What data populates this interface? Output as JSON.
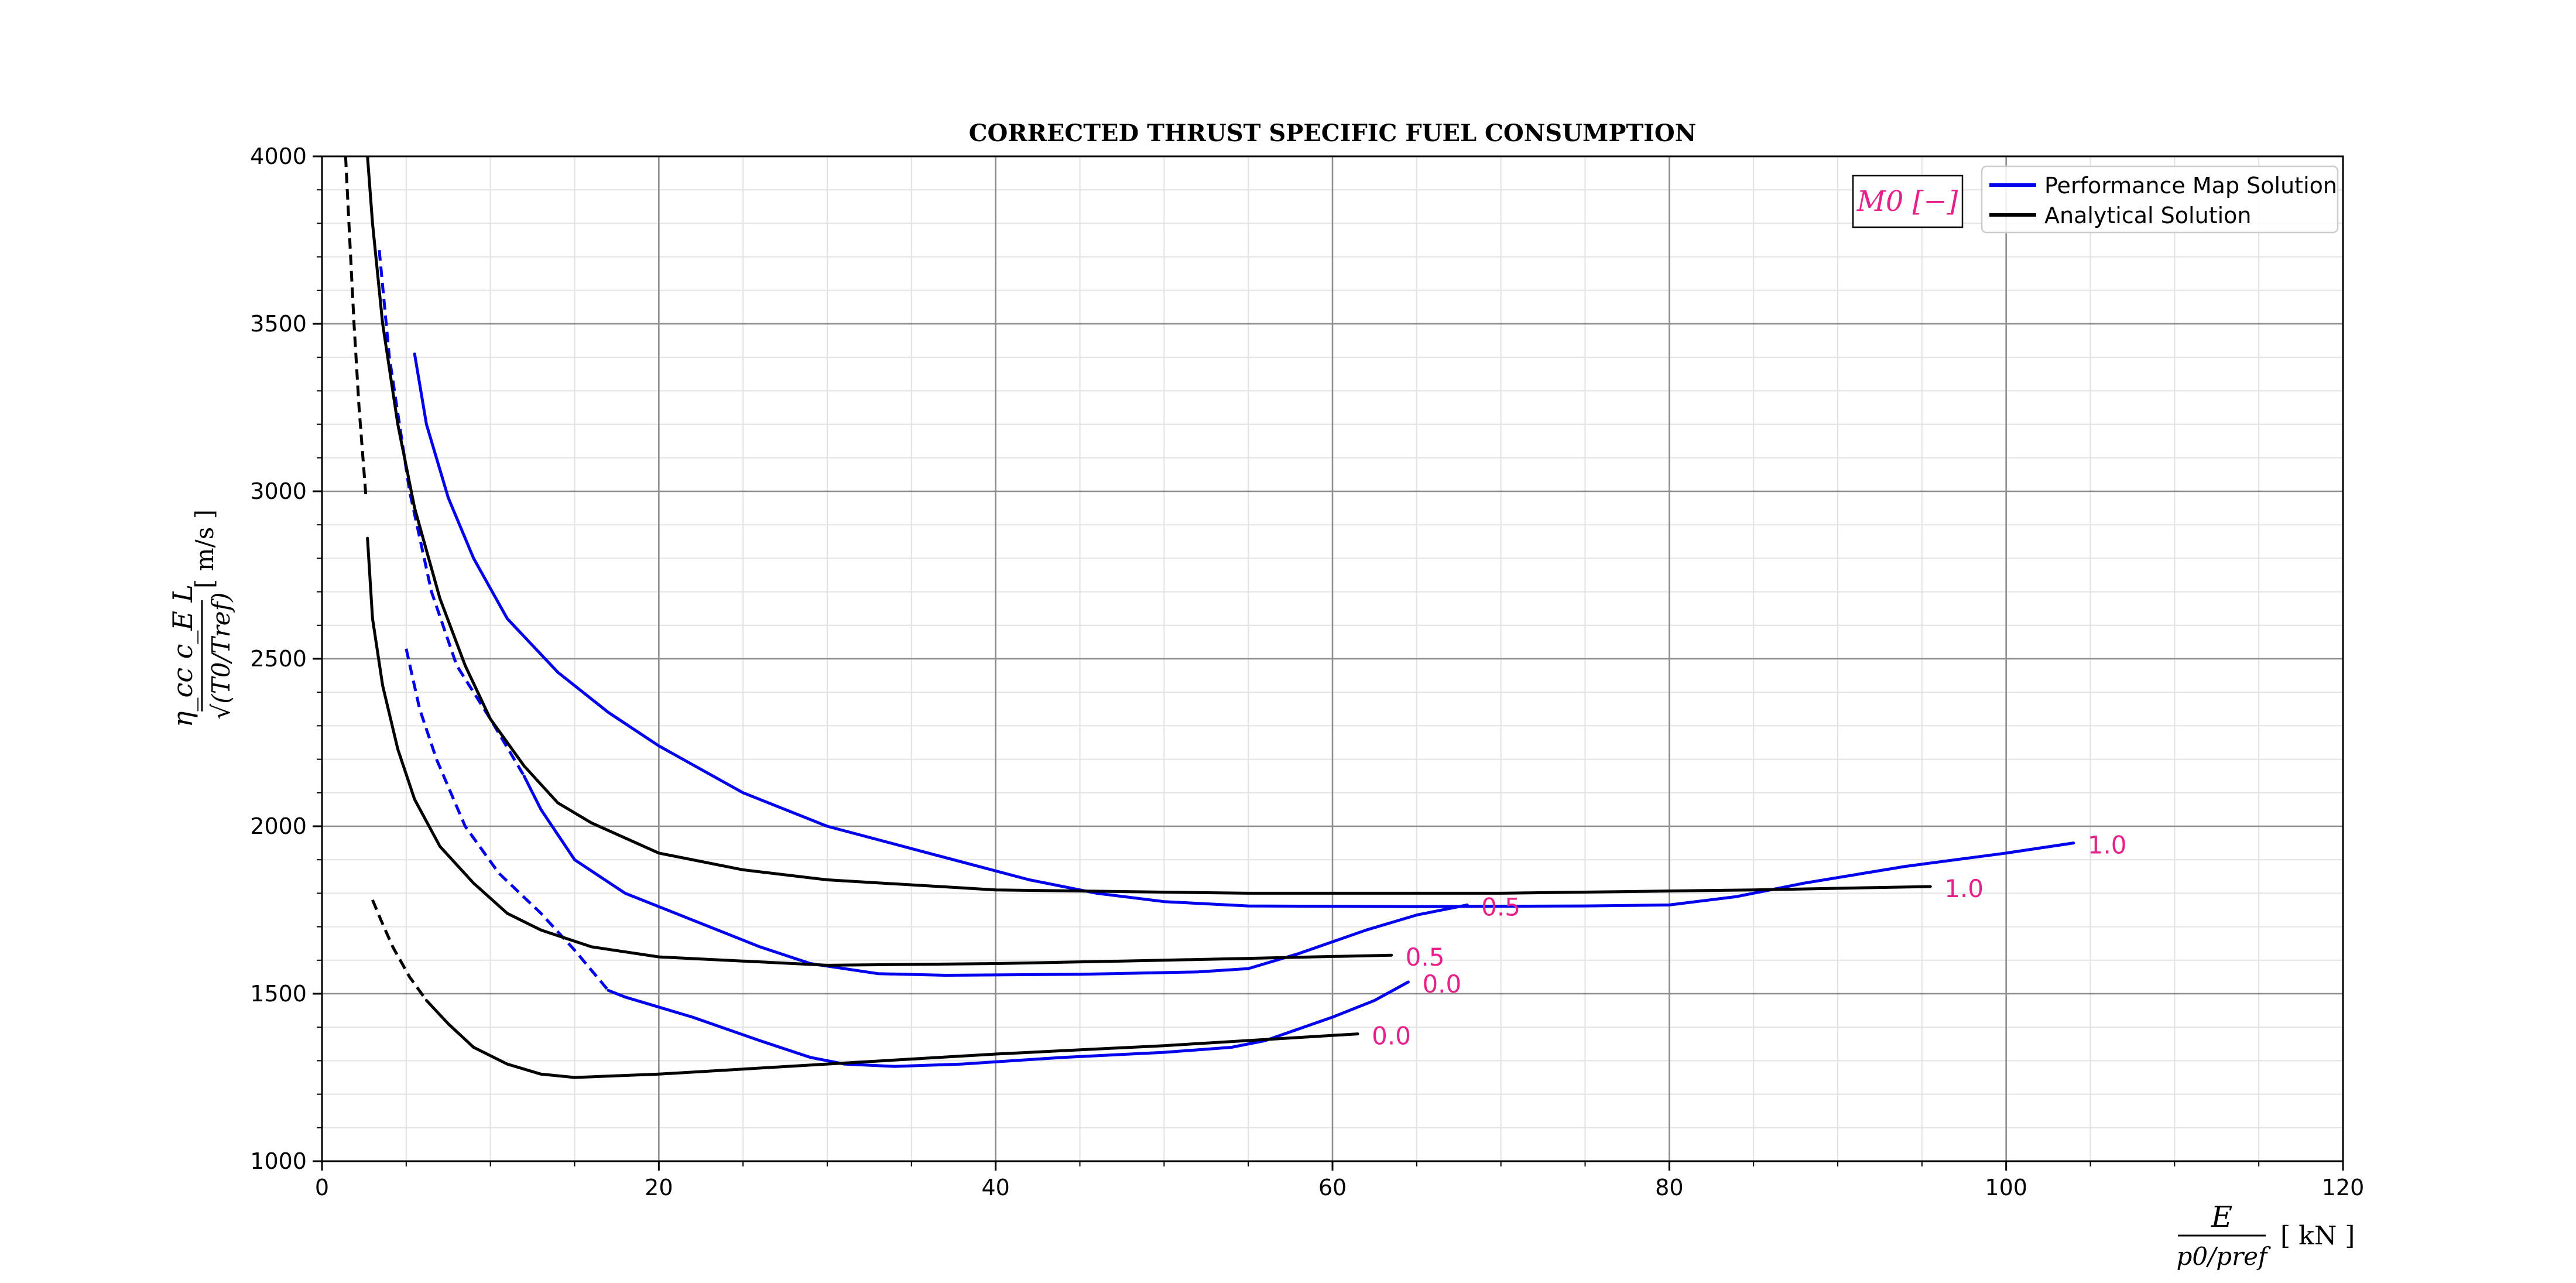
{
  "chart_data": {
    "type": "line",
    "title": "CORRECTED THRUST SPECIFIC FUEL CONSUMPTION",
    "xlabel": {
      "numerator": "E",
      "denominator": "p0/pref",
      "unit": "[ kN ]"
    },
    "ylabel": {
      "numerator": "η_cc c_E L",
      "denominator": "√(T0/Tref)",
      "unit": "[ m/s ]"
    },
    "xlim": [
      0,
      120
    ],
    "ylim": [
      1000,
      4000
    ],
    "xticks": [
      0,
      20,
      40,
      60,
      80,
      100,
      120
    ],
    "yticks": [
      1000,
      1500,
      2000,
      2500,
      3000,
      3500,
      4000
    ],
    "grid": true,
    "legend": {
      "placement": "top-right",
      "title": "M0 [−]",
      "entries": [
        {
          "label": "Performance Map Solution",
          "color": "#0000ee"
        },
        {
          "label": "Analytical Solution",
          "color": "#000000"
        }
      ]
    },
    "label_color": "#e8208a",
    "series": [
      {
        "group": "Performance Map Solution",
        "mach": "0.0",
        "color": "#0000ee",
        "dashed": [
          [
            5.0,
            2530
          ],
          [
            5.8,
            2350
          ],
          [
            6.8,
            2200
          ],
          [
            8.5,
            2000
          ],
          [
            10.5,
            1860
          ],
          [
            13,
            1740
          ],
          [
            15,
            1630
          ],
          [
            17,
            1510
          ]
        ],
        "solid": [
          [
            17,
            1510
          ],
          [
            18,
            1490
          ],
          [
            22,
            1430
          ],
          [
            26,
            1360
          ],
          [
            29,
            1310
          ],
          [
            31,
            1290
          ],
          [
            34,
            1283
          ],
          [
            38,
            1290
          ],
          [
            44,
            1310
          ],
          [
            50,
            1325
          ],
          [
            54,
            1340
          ],
          [
            56,
            1360
          ],
          [
            60,
            1430
          ],
          [
            62.5,
            1480
          ],
          [
            64.5,
            1535
          ]
        ]
      },
      {
        "group": "Performance Map Solution",
        "mach": "0.5",
        "color": "#0000ee",
        "dashed": [
          [
            3.4,
            3720
          ],
          [
            4.0,
            3400
          ],
          [
            5.2,
            3000
          ],
          [
            6.5,
            2700
          ],
          [
            8.0,
            2480
          ],
          [
            10,
            2320
          ],
          [
            12,
            2150
          ]
        ],
        "solid": [
          [
            12,
            2150
          ],
          [
            13,
            2050
          ],
          [
            15,
            1900
          ],
          [
            18,
            1800
          ],
          [
            22,
            1720
          ],
          [
            26,
            1640
          ],
          [
            29,
            1590
          ],
          [
            33,
            1560
          ],
          [
            37,
            1555
          ],
          [
            45,
            1558
          ],
          [
            52,
            1565
          ],
          [
            55,
            1575
          ],
          [
            58,
            1620
          ],
          [
            62,
            1690
          ],
          [
            65,
            1735
          ],
          [
            68,
            1765
          ]
        ]
      },
      {
        "group": "Performance Map Solution",
        "mach": "1.0",
        "color": "#0000ee",
        "solid": [
          [
            5.5,
            3410
          ],
          [
            6.2,
            3200
          ],
          [
            7.5,
            2980
          ],
          [
            9,
            2800
          ],
          [
            11,
            2620
          ],
          [
            14,
            2460
          ],
          [
            17,
            2340
          ],
          [
            20,
            2240
          ],
          [
            25,
            2100
          ],
          [
            30,
            2000
          ],
          [
            36,
            1920
          ],
          [
            42,
            1840
          ],
          [
            46,
            1800
          ],
          [
            50,
            1775
          ],
          [
            55,
            1762
          ],
          [
            65,
            1760
          ],
          [
            75,
            1762
          ],
          [
            80,
            1765
          ],
          [
            84,
            1790
          ],
          [
            88,
            1830
          ],
          [
            94,
            1880
          ],
          [
            100,
            1920
          ],
          [
            104,
            1950
          ]
        ]
      },
      {
        "group": "Analytical Solution",
        "mach": "0.0",
        "color": "#000000",
        "dashed": [
          [
            3.0,
            1780
          ],
          [
            3.5,
            1720
          ],
          [
            4.2,
            1640
          ],
          [
            5.2,
            1550
          ],
          [
            6.2,
            1480
          ]
        ],
        "solid": [
          [
            6.2,
            1480
          ],
          [
            7.5,
            1410
          ],
          [
            9,
            1340
          ],
          [
            11,
            1290
          ],
          [
            13,
            1260
          ],
          [
            15,
            1250
          ],
          [
            20,
            1260
          ],
          [
            30,
            1290
          ],
          [
            40,
            1320
          ],
          [
            50,
            1345
          ],
          [
            61.5,
            1380
          ]
        ]
      },
      {
        "group": "Analytical Solution",
        "mach": "0.5",
        "color": "#000000",
        "solid": [
          [
            2.7,
            2860
          ],
          [
            3.0,
            2620
          ],
          [
            3.6,
            2420
          ],
          [
            4.5,
            2230
          ],
          [
            5.5,
            2080
          ],
          [
            7,
            1940
          ],
          [
            9,
            1830
          ],
          [
            11,
            1740
          ],
          [
            13,
            1690
          ],
          [
            16,
            1640
          ],
          [
            20,
            1610
          ],
          [
            30,
            1585
          ],
          [
            40,
            1590
          ],
          [
            50,
            1600
          ],
          [
            63.5,
            1615
          ]
        ]
      },
      {
        "group": "Analytical Solution",
        "mach": "1.0",
        "color": "#000000",
        "dashed": [
          [
            1.4,
            4000
          ],
          [
            1.6,
            3800
          ],
          [
            1.9,
            3500
          ],
          [
            2.2,
            3250
          ],
          [
            2.6,
            2990
          ]
        ],
        "solid": [
          [
            2.7,
            4000
          ],
          [
            3.0,
            3800
          ],
          [
            3.6,
            3500
          ],
          [
            4.5,
            3200
          ],
          [
            5.5,
            2950
          ],
          [
            7,
            2680
          ],
          [
            8.5,
            2480
          ],
          [
            10,
            2320
          ],
          [
            12,
            2180
          ],
          [
            14,
            2070
          ],
          [
            16,
            2010
          ],
          [
            20,
            1920
          ],
          [
            25,
            1870
          ],
          [
            30,
            1840
          ],
          [
            40,
            1810
          ],
          [
            55,
            1800
          ],
          [
            70,
            1800
          ],
          [
            85,
            1810
          ],
          [
            95.5,
            1820
          ]
        ]
      }
    ],
    "end_labels": [
      {
        "text": "1.0",
        "x": 104,
        "y": 1950
      },
      {
        "text": "1.0",
        "x": 95.5,
        "y": 1820
      },
      {
        "text": "0.5",
        "x": 68,
        "y": 1765
      },
      {
        "text": "0.5",
        "x": 63.5,
        "y": 1615
      },
      {
        "text": "0.0",
        "x": 64.5,
        "y": 1535
      },
      {
        "text": "0.0",
        "x": 61.5,
        "y": 1380
      }
    ]
  }
}
